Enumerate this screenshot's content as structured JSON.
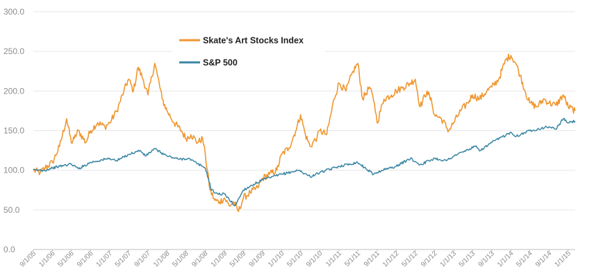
{
  "colors": {
    "art": "#f0962e",
    "sp": "#3a86a3",
    "grid": "#e6e6e6",
    "tick": "#8c8c8c"
  },
  "chart_data": {
    "type": "line",
    "title": "",
    "xlabel": "",
    "ylabel": "",
    "ylim": [
      0,
      300
    ],
    "xlim": [
      "2005-09-01",
      "2015-02-15"
    ],
    "grid": "horizontal",
    "legend_position": "top-center",
    "y_ticks": [
      "0.0",
      "50.0",
      "100.0",
      "150.0",
      "200.0",
      "250.0",
      "300.0"
    ],
    "x_ticks": [
      {
        "date": "2005-09-01",
        "label": "9/1/05"
      },
      {
        "date": "2006-01-01",
        "label": "1/1/06"
      },
      {
        "date": "2006-05-01",
        "label": "5/1/06"
      },
      {
        "date": "2006-09-01",
        "label": "9/1/06"
      },
      {
        "date": "2007-01-01",
        "label": "1/1/07"
      },
      {
        "date": "2007-05-01",
        "label": "5/1/07"
      },
      {
        "date": "2007-09-01",
        "label": "9/1/07"
      },
      {
        "date": "2008-01-01",
        "label": "1/1/08"
      },
      {
        "date": "2008-05-01",
        "label": "5/1/08"
      },
      {
        "date": "2008-09-01",
        "label": "9/1/08"
      },
      {
        "date": "2009-01-01",
        "label": "1/1/09"
      },
      {
        "date": "2009-05-01",
        "label": "5/1/09"
      },
      {
        "date": "2009-09-01",
        "label": "9/1/09"
      },
      {
        "date": "2010-01-01",
        "label": "1/1/10"
      },
      {
        "date": "2010-05-01",
        "label": "5/1/10"
      },
      {
        "date": "2010-09-01",
        "label": "9/1/10"
      },
      {
        "date": "2011-01-01",
        "label": "1/1/11"
      },
      {
        "date": "2011-05-01",
        "label": "5/1/11"
      },
      {
        "date": "2011-09-01",
        "label": "9/1/11"
      },
      {
        "date": "2012-01-01",
        "label": "1/1/12"
      },
      {
        "date": "2012-05-01",
        "label": "5/1/12"
      },
      {
        "date": "2012-09-01",
        "label": "9/1/12"
      },
      {
        "date": "2013-01-01",
        "label": "1/1/13"
      },
      {
        "date": "2013-05-01",
        "label": "5/1/13"
      },
      {
        "date": "2013-09-01",
        "label": "9/1/13"
      },
      {
        "date": "2014-01-01",
        "label": "1/1/14"
      },
      {
        "date": "2014-05-01",
        "label": "5/1/14"
      },
      {
        "date": "2014-09-01",
        "label": "9/1/14"
      },
      {
        "date": "2015-01-01",
        "label": "1/1/15"
      }
    ],
    "series": [
      {
        "name": "Skate's Art Stocks Index",
        "color": "#f0962e",
        "x": [
          "2005-09-01",
          "2005-10-15",
          "2005-11-15",
          "2006-01-01",
          "2006-02-15",
          "2006-04-01",
          "2006-05-01",
          "2006-05-20",
          "2006-06-15",
          "2006-08-01",
          "2006-09-01",
          "2006-10-15",
          "2006-12-01",
          "2007-01-01",
          "2007-02-15",
          "2007-04-01",
          "2007-05-01",
          "2007-06-01",
          "2007-07-01",
          "2007-08-01",
          "2007-09-01",
          "2007-10-15",
          "2007-11-01",
          "2007-12-01",
          "2008-01-01",
          "2008-02-15",
          "2008-04-01",
          "2008-05-01",
          "2008-06-01",
          "2008-07-15",
          "2008-08-15",
          "2008-09-01",
          "2008-10-01",
          "2008-11-01",
          "2008-12-01",
          "2009-01-01",
          "2009-02-01",
          "2009-03-01",
          "2009-04-01",
          "2009-05-01",
          "2009-06-15",
          "2009-08-01",
          "2009-09-01",
          "2009-10-15",
          "2009-12-01",
          "2010-01-01",
          "2010-02-15",
          "2010-04-01",
          "2010-05-01",
          "2010-06-01",
          "2010-07-01",
          "2010-08-15",
          "2010-09-01",
          "2010-10-15",
          "2010-12-01",
          "2011-01-01",
          "2011-02-15",
          "2011-04-01",
          "2011-05-01",
          "2011-06-01",
          "2011-07-15",
          "2011-08-15",
          "2011-09-01",
          "2011-10-15",
          "2011-12-01",
          "2012-01-01",
          "2012-02-15",
          "2012-04-01",
          "2012-05-01",
          "2012-06-01",
          "2012-07-15",
          "2012-08-15",
          "2012-09-01",
          "2012-10-15",
          "2012-12-01",
          "2013-01-01",
          "2013-02-15",
          "2013-04-01",
          "2013-05-01",
          "2013-06-15",
          "2013-08-01",
          "2013-09-01",
          "2013-10-15",
          "2013-12-01",
          "2014-01-01",
          "2014-02-01",
          "2014-03-01",
          "2014-04-01",
          "2014-05-01",
          "2014-06-15",
          "2014-08-01",
          "2014-09-01",
          "2014-10-15",
          "2014-12-01",
          "2015-01-01",
          "2015-02-15"
        ],
        "values": [
          100,
          97,
          103,
          110,
          130,
          165,
          135,
          140,
          150,
          135,
          150,
          160,
          155,
          160,
          175,
          200,
          215,
          200,
          230,
          215,
          195,
          235,
          220,
          190,
          175,
          160,
          150,
          140,
          145,
          135,
          140,
          120,
          75,
          62,
          60,
          65,
          55,
          60,
          48,
          65,
          72,
          78,
          90,
          95,
          100,
          120,
          128,
          150,
          170,
          145,
          130,
          142,
          150,
          145,
          190,
          210,
          200,
          225,
          235,
          190,
          205,
          185,
          160,
          190,
          195,
          200,
          205,
          210,
          215,
          180,
          200,
          185,
          170,
          165,
          150,
          160,
          175,
          185,
          195,
          190,
          200,
          205,
          215,
          240,
          245,
          235,
          220,
          200,
          185,
          180,
          190,
          185,
          182,
          195,
          180,
          175
        ]
      },
      {
        "name": "S&P 500",
        "color": "#3a86a3",
        "x": [
          "2005-09-01",
          "2005-11-15",
          "2006-01-01",
          "2006-05-01",
          "2006-06-15",
          "2006-09-01",
          "2007-01-01",
          "2007-02-15",
          "2007-05-01",
          "2007-07-15",
          "2007-08-15",
          "2007-10-15",
          "2008-01-01",
          "2008-03-15",
          "2008-05-15",
          "2008-07-15",
          "2008-09-01",
          "2008-09-20",
          "2008-10-10",
          "2008-11-20",
          "2009-01-01",
          "2009-03-09",
          "2009-05-01",
          "2009-06-15",
          "2009-09-01",
          "2010-01-01",
          "2010-04-20",
          "2010-07-01",
          "2010-09-01",
          "2011-01-01",
          "2011-04-29",
          "2011-08-10",
          "2011-10-01",
          "2012-01-01",
          "2012-04-01",
          "2012-06-01",
          "2012-09-01",
          "2012-11-15",
          "2013-01-01",
          "2013-05-20",
          "2013-06-20",
          "2013-09-01",
          "2014-01-01",
          "2014-02-05",
          "2014-05-01",
          "2014-09-01",
          "2014-10-15",
          "2014-12-01",
          "2015-01-01",
          "2015-02-15"
        ],
        "values": [
          100,
          100,
          103,
          108,
          102,
          110,
          115,
          112,
          120,
          125,
          118,
          127,
          118,
          114,
          115,
          108,
          103,
          90,
          75,
          70,
          70,
          55,
          75,
          80,
          88,
          95,
          100,
          92,
          97,
          105,
          110,
          95,
          100,
          105,
          115,
          107,
          115,
          112,
          118,
          130,
          125,
          135,
          148,
          143,
          150,
          155,
          152,
          165,
          160,
          162
        ]
      }
    ]
  }
}
